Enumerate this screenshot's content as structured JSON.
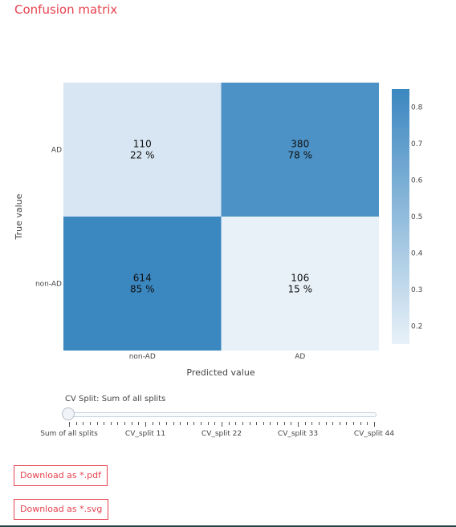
{
  "page": {
    "title": "Confusion matrix"
  },
  "chart_data": {
    "type": "heatmap",
    "xlabel": "Predicted value",
    "ylabel": "True value",
    "x_categories": [
      "non-AD",
      "AD"
    ],
    "y_categories": [
      "AD",
      "non-AD"
    ],
    "cells": [
      {
        "true": "AD",
        "predicted": "non-AD",
        "count": 110,
        "fraction": 0.22,
        "percent_label": "22 %"
      },
      {
        "true": "AD",
        "predicted": "AD",
        "count": 380,
        "fraction": 0.78,
        "percent_label": "78 %"
      },
      {
        "true": "non-AD",
        "predicted": "non-AD",
        "count": 614,
        "fraction": 0.85,
        "percent_label": "85 %"
      },
      {
        "true": "non-AD",
        "predicted": "AD",
        "count": 106,
        "fraction": 0.15,
        "percent_label": "15 %"
      }
    ],
    "colorscale": {
      "min": 0.15,
      "max": 0.85,
      "low_color": "#e8f1f8",
      "high_color": "#3b87c0"
    },
    "colorbar_ticks": [
      "0.2",
      "0.3",
      "0.4",
      "0.5",
      "0.6",
      "0.7",
      "0.8"
    ]
  },
  "slider": {
    "label": "CV Split: Sum of all splits",
    "step_labels": [
      "Sum of all splits",
      "CV_split 11",
      "CV_split 22",
      "CV_split 33",
      "CV_split 44"
    ]
  },
  "buttons": {
    "pdf_label": "Download as *.pdf",
    "svg_label": "Download as *.svg"
  }
}
